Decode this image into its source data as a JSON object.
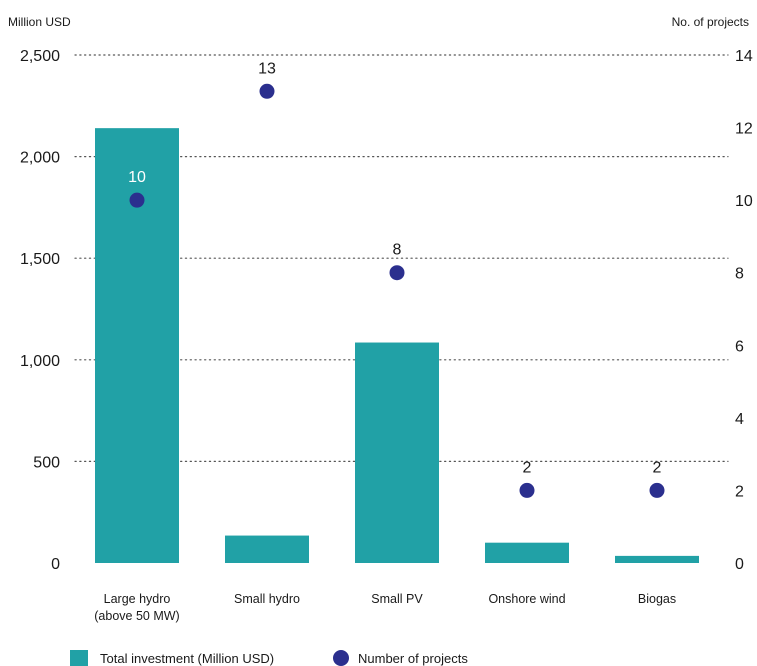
{
  "chart_data": {
    "type": "bar",
    "categories": [
      [
        "Large hydro",
        "(above 50 MW)"
      ],
      [
        "Small hydro"
      ],
      [
        "Small PV"
      ],
      [
        "Onshore wind"
      ],
      [
        "Biogas"
      ]
    ],
    "series": [
      {
        "name": "Total investment (Million USD)",
        "type": "bar",
        "axis": "left",
        "values": [
          2140,
          135,
          1085,
          100,
          35
        ]
      },
      {
        "name": "Number of projects",
        "type": "scatter",
        "axis": "right",
        "values": [
          10,
          13,
          8,
          2,
          2
        ],
        "labels": [
          "10",
          "13",
          "8",
          "2",
          "2"
        ]
      }
    ],
    "ylabel_left": "Million USD",
    "ylabel_right": "No. of projects",
    "ylim_left": [
      0,
      2500
    ],
    "ylim_right": [
      0,
      14
    ],
    "yticks_left": [
      "0",
      "500",
      "1,000",
      "1,500",
      "2,000",
      "2,500"
    ],
    "yticks_right": [
      "0",
      "2",
      "4",
      "6",
      "8",
      "10",
      "12",
      "14"
    ],
    "grid": "dotted",
    "legend_position": "bottom-left",
    "colors": {
      "bar": "#21a1a6",
      "dot": "#2b2f8e",
      "grid": "#555555"
    }
  }
}
